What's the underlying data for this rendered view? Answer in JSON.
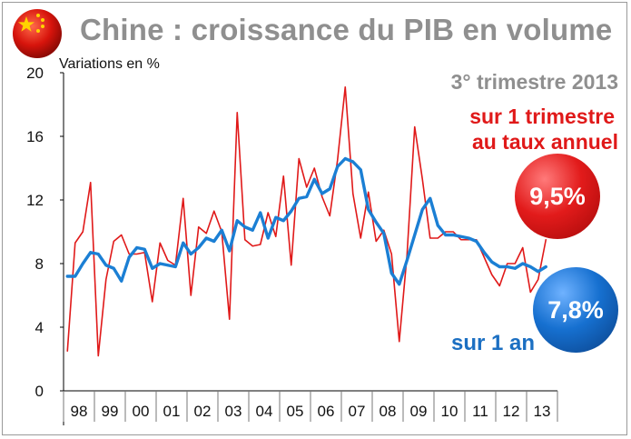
{
  "header": {
    "title": "Chine : croissance du PIB en volume",
    "period": "3° trimestre 2013"
  },
  "icons": {
    "flag": "china-flag-icon"
  },
  "annotations": {
    "red_line_1": "sur 1 trimestre",
    "red_line_2": "au taux annuel",
    "blue": "sur 1 an",
    "red_value": "9,5%",
    "blue_value": "7,8%"
  },
  "chart_data": {
    "type": "line",
    "ylabel": "Variations en %",
    "ylim": [
      0,
      20
    ],
    "yticks": [
      0,
      4,
      8,
      12,
      16,
      20
    ],
    "categories": [
      "98",
      "99",
      "00",
      "01",
      "02",
      "03",
      "04",
      "05",
      "06",
      "07",
      "08",
      "09",
      "10",
      "11",
      "12",
      "13"
    ],
    "x_range": [
      1998.0,
      2014.0
    ],
    "grid": "vertical year separators",
    "series": [
      {
        "color": "#e01919",
        "x": [
          1998.125,
          1998.375,
          1998.625,
          1998.875,
          1999.125,
          1999.375,
          1999.625,
          1999.875,
          2000.125,
          2000.375,
          2000.625,
          2000.875,
          2001.125,
          2001.375,
          2001.625,
          2001.875,
          2002.125,
          2002.375,
          2002.625,
          2002.875,
          2003.125,
          2003.375,
          2003.625,
          2003.875,
          2004.125,
          2004.375,
          2004.625,
          2004.875,
          2005.125,
          2005.375,
          2005.625,
          2005.875,
          2006.125,
          2006.375,
          2006.625,
          2006.875,
          2007.125,
          2007.375,
          2007.625,
          2007.875,
          2008.125,
          2008.375,
          2008.625,
          2008.875,
          2009.125,
          2009.375,
          2009.625,
          2009.875,
          2010.125,
          2010.375,
          2010.625,
          2010.875,
          2011.125,
          2011.375,
          2011.625,
          2011.875,
          2012.125,
          2012.375,
          2012.625,
          2012.875,
          2013.125,
          2013.375,
          2013.625
        ],
        "values": [
          2.5,
          9.3,
          10.0,
          13.1,
          2.2,
          7.0,
          9.4,
          9.8,
          8.6,
          8.6,
          8.7,
          5.6,
          9.3,
          8.2,
          7.9,
          12.1,
          6.0,
          10.3,
          9.9,
          11.3,
          10.0,
          4.5,
          17.5,
          9.5,
          9.1,
          9.2,
          11.2,
          9.7,
          13.5,
          7.9,
          14.6,
          12.8,
          14.0,
          12.2,
          11.0,
          14.5,
          19.1,
          12.4,
          9.6,
          12.5,
          9.4,
          10.1,
          8.6,
          3.1,
          8.5,
          16.6,
          13.3,
          9.6,
          9.6,
          10.0,
          10.0,
          9.5,
          9.5,
          9.5,
          8.4,
          7.3,
          6.6,
          8.0,
          8.0,
          9.0,
          6.2,
          7.0,
          9.5
        ]
      },
      {
        "color": "#1b7fd4",
        "x": [
          1998.125,
          1998.375,
          1998.625,
          1998.875,
          1999.125,
          1999.375,
          1999.625,
          1999.875,
          2000.125,
          2000.375,
          2000.625,
          2000.875,
          2001.125,
          2001.375,
          2001.625,
          2001.875,
          2002.125,
          2002.375,
          2002.625,
          2002.875,
          2003.125,
          2003.375,
          2003.625,
          2003.875,
          2004.125,
          2004.375,
          2004.625,
          2004.875,
          2005.125,
          2005.375,
          2005.625,
          2005.875,
          2006.125,
          2006.375,
          2006.625,
          2006.875,
          2007.125,
          2007.375,
          2007.625,
          2007.875,
          2008.125,
          2008.375,
          2008.625,
          2008.875,
          2009.125,
          2009.375,
          2009.625,
          2009.875,
          2010.125,
          2010.375,
          2010.625,
          2010.875,
          2011.125,
          2011.375,
          2011.625,
          2011.875,
          2012.125,
          2012.375,
          2012.625,
          2012.875,
          2013.125,
          2013.375,
          2013.625
        ],
        "values": [
          7.2,
          7.2,
          8.0,
          8.7,
          8.6,
          7.9,
          7.7,
          6.9,
          8.4,
          9.0,
          8.9,
          7.7,
          8.0,
          7.9,
          7.8,
          9.3,
          8.6,
          9.0,
          9.6,
          9.4,
          10.1,
          8.8,
          10.7,
          10.3,
          10.1,
          11.2,
          9.6,
          10.9,
          10.7,
          11.3,
          12.1,
          12.2,
          13.3,
          12.4,
          12.7,
          14.1,
          14.6,
          14.4,
          13.9,
          11.4,
          10.6,
          9.9,
          7.4,
          6.7,
          8.2,
          9.8,
          11.4,
          12.1,
          10.4,
          9.8,
          9.8,
          9.7,
          9.6,
          9.4,
          8.7,
          8.1,
          7.8,
          7.8,
          7.7,
          8.0,
          7.8,
          7.5,
          7.8
        ]
      }
    ]
  }
}
